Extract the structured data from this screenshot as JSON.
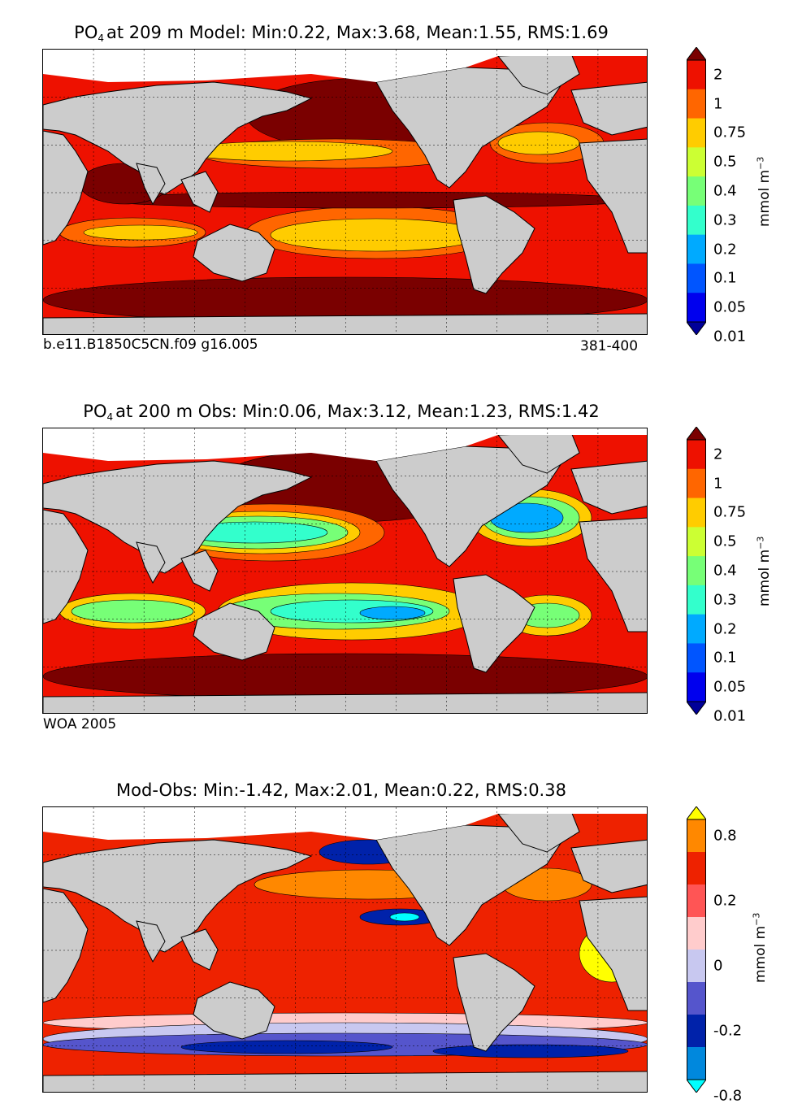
{
  "panels": [
    {
      "title_prefix": "PO",
      "title_sub": "4",
      "title_rest": "at 209 m Model: Min:0.22, Max:3.68, Mean:1.55, RMS:1.69",
      "caption_left": "b.e11.B1850C5CN.f09 g16.005",
      "caption_right": "381-400",
      "stats": {
        "min": 0.22,
        "max": 3.68,
        "mean": 1.55,
        "rms": 1.69
      }
    },
    {
      "title_prefix": "PO",
      "title_sub": "4",
      "title_rest": "at 200 m Obs: Min:0.06, Max:3.12, Mean:1.23, RMS:1.42",
      "caption_left": "WOA 2005",
      "caption_right": "",
      "stats": {
        "min": 0.06,
        "max": 3.12,
        "mean": 1.23,
        "rms": 1.42
      }
    },
    {
      "title_prefix": "",
      "title_sub": "",
      "title_rest": "Mod-Obs: Min:-1.42, Max:2.01, Mean:0.22, RMS:0.38",
      "caption_left": "",
      "caption_right": "",
      "stats": {
        "min": -1.42,
        "max": 2.01,
        "mean": 0.22,
        "rms": 0.38
      }
    }
  ],
  "colorbars": {
    "concentration": {
      "unit_base": "mmol m",
      "unit_exp": "−3",
      "ticks": [
        "2",
        "1",
        "0.75",
        "0.5",
        "0.4",
        "0.3",
        "0.2",
        "0.1",
        "0.05",
        "0.01"
      ],
      "colors": [
        "#7a0000",
        "#ee1100",
        "#ff6600",
        "#ffcc00",
        "#ccff33",
        "#77ff77",
        "#33ffcc",
        "#00aaff",
        "#0055ff",
        "#0000ee",
        "#000099"
      ]
    },
    "difference": {
      "unit_base": "mmol m",
      "unit_exp": "−3",
      "ticks": [
        "0.8",
        "0.2",
        "0",
        "-0.2",
        "-0.8"
      ],
      "colors": [
        "#ffff00",
        "#ff8800",
        "#ee2200",
        "#ff5555",
        "#ffcccc",
        "#c8c8f0",
        "#5555cc",
        "#0022aa",
        "#0088dd",
        "#00ffff"
      ]
    }
  },
  "chart_data": [
    {
      "type": "heatmap",
      "title": "PO4 at 209 m Model: Min:0.22, Max:3.68, Mean:1.55, RMS:1.69",
      "variable": "PO4",
      "depth": "209 m",
      "source": "Model",
      "colorbar_levels": [
        0.01,
        0.05,
        0.1,
        0.2,
        0.3,
        0.4,
        0.5,
        0.75,
        1,
        2
      ],
      "unit": "mmol m^-3"
    },
    {
      "type": "heatmap",
      "title": "PO4 at 200 m Obs: Min:0.06, Max:3.12, Mean:1.23, RMS:1.42",
      "variable": "PO4",
      "depth": "200 m",
      "source": "Obs (WOA 2005)",
      "colorbar_levels": [
        0.01,
        0.05,
        0.1,
        0.2,
        0.3,
        0.4,
        0.5,
        0.75,
        1,
        2
      ],
      "unit": "mmol m^-3"
    },
    {
      "type": "heatmap",
      "title": "Mod-Obs: Min:-1.42, Max:2.01, Mean:0.22, RMS:0.38",
      "variable": "PO4 difference",
      "source": "Model minus Obs",
      "colorbar_levels": [
        -0.8,
        -0.2,
        0,
        0.2,
        0.8
      ],
      "unit": "mmol m^-3"
    }
  ]
}
